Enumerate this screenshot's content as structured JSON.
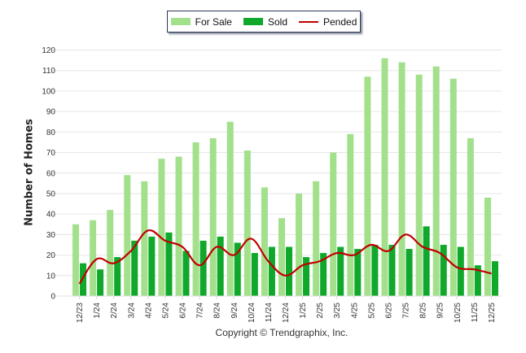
{
  "chart_data": {
    "type": "bar",
    "title": "",
    "xlabel": "",
    "ylabel": "Number of Homes",
    "ylim": [
      0,
      120
    ],
    "yticks": [
      0,
      10,
      20,
      30,
      40,
      50,
      60,
      70,
      80,
      90,
      100,
      110,
      120
    ],
    "grid": true,
    "legend_position": "top-center",
    "categories": [
      "12/23",
      "1/24",
      "2/24",
      "3/24",
      "4/24",
      "5/24",
      "6/24",
      "7/24",
      "8/24",
      "9/24",
      "10/24",
      "11/24",
      "12/24",
      "1/25",
      "2/25",
      "3/25",
      "4/25",
      "5/25",
      "6/25",
      "7/25",
      "8/25",
      "9/25",
      "10/25",
      "11/25",
      "12/25"
    ],
    "series": [
      {
        "name": "For Sale",
        "type": "bar",
        "color": "#a3e08c",
        "values": [
          35,
          37,
          42,
          59,
          56,
          67,
          68,
          75,
          77,
          85,
          71,
          53,
          38,
          50,
          56,
          70,
          79,
          107,
          116,
          114,
          108,
          112,
          106,
          77,
          48
        ]
      },
      {
        "name": "Sold",
        "type": "bar",
        "color": "#0fa82a",
        "values": [
          16,
          13,
          19,
          27,
          29,
          31,
          22,
          27,
          29,
          26,
          21,
          24,
          24,
          19,
          21,
          24,
          23,
          25,
          25,
          23,
          34,
          25,
          24,
          15,
          17
        ]
      },
      {
        "name": "Pended",
        "type": "line",
        "color": "#c00000",
        "values": [
          6,
          18,
          16,
          22,
          32,
          27,
          24,
          15,
          24,
          20,
          28,
          17,
          10,
          15,
          17,
          21,
          20,
          25,
          22,
          30,
          24,
          21,
          14,
          13,
          11
        ]
      }
    ]
  },
  "legend": {
    "items": [
      {
        "label": "For Sale",
        "kind": "bar",
        "color": "#a3e08c"
      },
      {
        "label": "Sold",
        "kind": "bar",
        "color": "#0fa82a"
      },
      {
        "label": "Pended",
        "kind": "line",
        "color": "#c00000"
      }
    ]
  },
  "footer": {
    "copyright": "Copyright © Trendgraphix, Inc."
  }
}
